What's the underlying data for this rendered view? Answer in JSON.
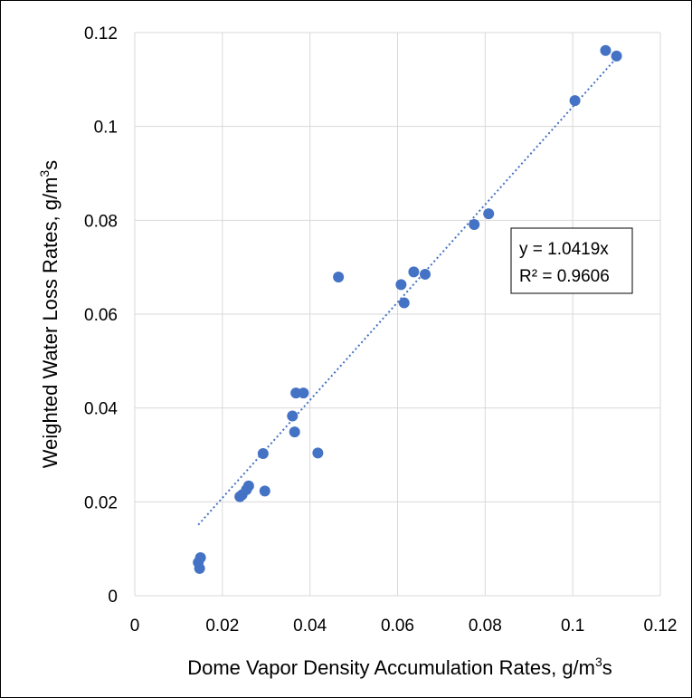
{
  "chart_data": {
    "type": "scatter",
    "xlabel": {
      "text": "Dome Vapor Density Accumulation Rates, g/m",
      "sup": "3",
      "tail": "s"
    },
    "ylabel": {
      "text": "Weighted Water Loss Rates, g/m",
      "sup": "3",
      "tail": "s"
    },
    "xlim": [
      0,
      0.12
    ],
    "ylim": [
      0,
      0.12
    ],
    "xticks": [
      0,
      0.02,
      0.04,
      0.06,
      0.08,
      0.1,
      0.12
    ],
    "yticks": [
      0,
      0.02,
      0.04,
      0.06,
      0.08,
      0.1,
      0.12
    ],
    "xtick_labels": [
      "0",
      "0.02",
      "0.04",
      "0.06",
      "0.08",
      "0.1",
      "0.12"
    ],
    "ytick_labels": [
      "0",
      "0.02",
      "0.04",
      "0.06",
      "0.08",
      "0.1",
      "0.12"
    ],
    "grid": true,
    "marker_color": "#4472C4",
    "trendline": {
      "type": "linear",
      "slope": 1.0419,
      "x_range": [
        0.0145,
        0.11
      ],
      "style": "dotted",
      "color": "#4472C4",
      "equation": "y = 1.0419x",
      "r_squared": "R² = 0.9606"
    },
    "points": [
      {
        "x": 0.0145,
        "y": 0.0071
      },
      {
        "x": 0.015,
        "y": 0.0081
      },
      {
        "x": 0.0148,
        "y": 0.0058
      },
      {
        "x": 0.024,
        "y": 0.0211
      },
      {
        "x": 0.0245,
        "y": 0.0215
      },
      {
        "x": 0.0255,
        "y": 0.0226
      },
      {
        "x": 0.026,
        "y": 0.0234
      },
      {
        "x": 0.0293,
        "y": 0.0303
      },
      {
        "x": 0.0297,
        "y": 0.0223
      },
      {
        "x": 0.036,
        "y": 0.0383
      },
      {
        "x": 0.0365,
        "y": 0.0349
      },
      {
        "x": 0.0368,
        "y": 0.0432
      },
      {
        "x": 0.0385,
        "y": 0.0432
      },
      {
        "x": 0.0418,
        "y": 0.0304
      },
      {
        "x": 0.0465,
        "y": 0.0679
      },
      {
        "x": 0.0608,
        "y": 0.0663
      },
      {
        "x": 0.0615,
        "y": 0.0624
      },
      {
        "x": 0.0637,
        "y": 0.069
      },
      {
        "x": 0.0663,
        "y": 0.0685
      },
      {
        "x": 0.0775,
        "y": 0.0791
      },
      {
        "x": 0.0808,
        "y": 0.0814
      },
      {
        "x": 0.1005,
        "y": 0.1055
      },
      {
        "x": 0.1075,
        "y": 0.1162
      },
      {
        "x": 0.11,
        "y": 0.115
      }
    ]
  }
}
